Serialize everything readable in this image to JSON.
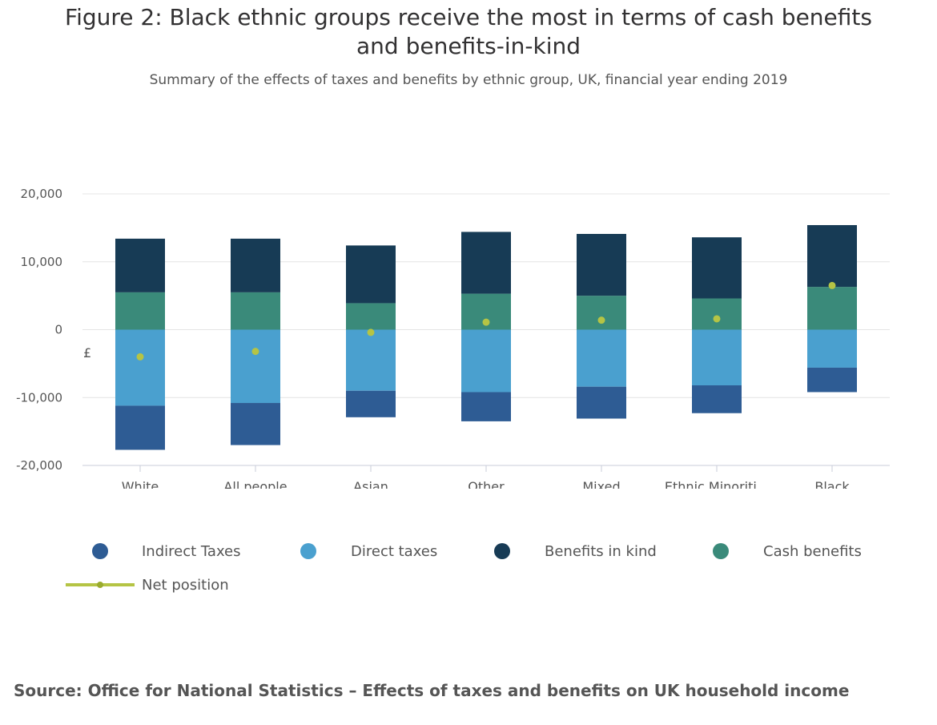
{
  "header": {
    "title_line1": "Figure 2: Black ethnic groups receive the most in terms of cash benefits",
    "title_line2": "and benefits-in-kind",
    "subtitle": "Summary of the effects of taxes and benefits by ethnic group, UK, financial year ending 2019"
  },
  "chart_data": {
    "type": "bar",
    "stacked": true,
    "title": "Figure 2: Black ethnic groups receive the most in terms of cash benefits and benefits-in-kind",
    "subtitle": "Summary of the effects of taxes and benefits by ethnic group, UK, financial year ending 2019",
    "ylabel": "£",
    "xlabel": "",
    "ylim": [
      -20000,
      20000
    ],
    "yticks": [
      20000,
      10000,
      0,
      -10000,
      -20000
    ],
    "ytick_labels": [
      "20,000",
      "10,000",
      "0",
      "-10,000",
      "-20,000"
    ],
    "categories": [
      "White",
      "All people",
      "Asian",
      "Other",
      "Mixed",
      "Ethnic Minoriti...",
      "Black"
    ],
    "series": [
      {
        "name": "Indirect Taxes",
        "color": "#2e5c94",
        "values": [
          -6500,
          -6200,
          -3900,
          -4300,
          -4700,
          -4100,
          -3600
        ]
      },
      {
        "name": "Direct taxes",
        "color": "#4aa0cf",
        "values": [
          -11200,
          -10800,
          -9000,
          -9200,
          -8400,
          -8200,
          -5600
        ]
      },
      {
        "name": "Benefits in kind",
        "color": "#173b55",
        "values": [
          7900,
          7900,
          8500,
          9100,
          9100,
          9000,
          9100
        ]
      },
      {
        "name": "Cash benefits",
        "color": "#3a8a7a",
        "values": [
          5500,
          5500,
          3900,
          5300,
          5000,
          4600,
          6300
        ]
      }
    ],
    "net_position": {
      "name": "Net position",
      "color": "#b5c445",
      "values": [
        -4000,
        -3200,
        -400,
        1100,
        1400,
        1600,
        6500
      ]
    },
    "legend": "bottom"
  },
  "source": "Source: Office for National Statistics – Effects of taxes and benefits on UK household income"
}
